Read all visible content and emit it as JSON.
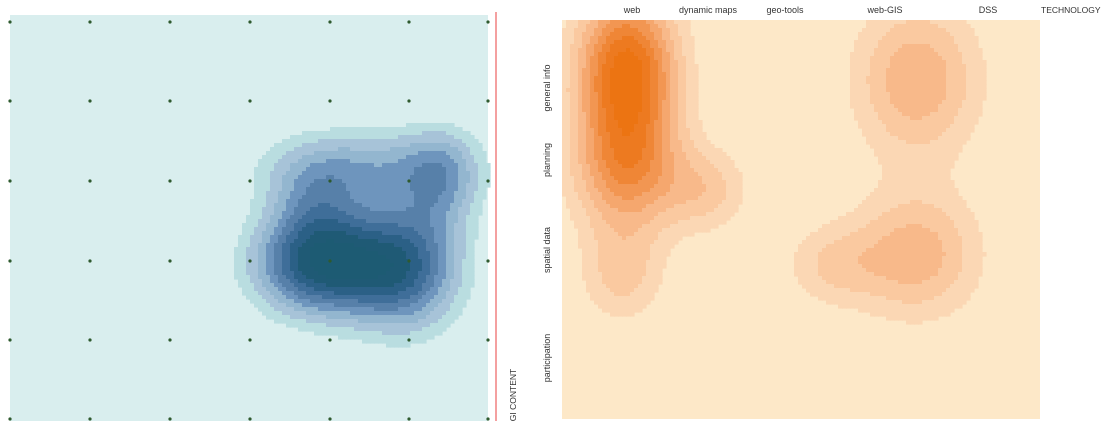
{
  "chart_data": [
    {
      "type": "heatmap",
      "title": "",
      "xlabel": "",
      "ylabel": "",
      "categories_x": [],
      "categories_y": [],
      "grid": true,
      "background_color": "#d9eeee",
      "ramp": [
        "#b9dde0",
        "#a7c3d8",
        "#93b6cf",
        "#6e95bd",
        "#5780a9",
        "#3f6e99",
        "#2b6086",
        "#1f5a75"
      ],
      "peak_color": "#1d5b73",
      "dot_color": "#2e5a2e",
      "divider_color": "#e84040",
      "hotspots": [
        {
          "x": 3.9,
          "y": 3.05,
          "sx": 0.6,
          "sy": 0.45,
          "w": 1.0
        },
        {
          "x": 4.95,
          "y": 3.1,
          "sx": 0.5,
          "sy": 0.55,
          "w": 0.75
        },
        {
          "x": 4.4,
          "y": 1.85,
          "sx": 0.9,
          "sy": 0.35,
          "w": 0.42
        },
        {
          "x": 5.4,
          "y": 2.0,
          "sx": 0.35,
          "sy": 0.45,
          "w": 0.38
        },
        {
          "x": 3.8,
          "y": 2.3,
          "sx": 0.4,
          "sy": 0.4,
          "w": 0.3
        }
      ]
    },
    {
      "type": "heatmap",
      "title": "",
      "xlabel": "TECHNOLOGY",
      "ylabel": "GI CONTENT",
      "categories_x": [
        "web",
        "dynamic maps",
        "geo-tools",
        "web-GIS",
        "DSS"
      ],
      "categories_y": [
        "general info",
        "planning",
        "spatial data",
        "participation"
      ],
      "grid": false,
      "background_color": "#fde8c8",
      "ramp": [
        "#fbd7b4",
        "#fac9a0",
        "#f8b98a",
        "#f5a76e",
        "#f29652",
        "#ef8636",
        "#ed7a20"
      ],
      "peak_color": "#ec7412",
      "hotspots": [
        {
          "x": 0.05,
          "y": 0.5,
          "sx": 0.35,
          "sy": 0.55,
          "w": 1.0
        },
        {
          "x": 0.05,
          "y": 1.5,
          "sx": 0.38,
          "sy": 0.45,
          "w": 0.62
        },
        {
          "x": 0.0,
          "y": 2.55,
          "sx": 0.3,
          "sy": 0.35,
          "w": 0.3
        },
        {
          "x": 0.85,
          "y": 1.7,
          "sx": 0.3,
          "sy": 0.3,
          "w": 0.3
        },
        {
          "x": 2.95,
          "y": 0.6,
          "sx": 0.45,
          "sy": 0.55,
          "w": 0.48
        },
        {
          "x": 2.95,
          "y": 2.35,
          "sx": 0.45,
          "sy": 0.45,
          "w": 0.45
        },
        {
          "x": 2.1,
          "y": 2.45,
          "sx": 0.35,
          "sy": 0.3,
          "w": 0.25
        }
      ]
    }
  ]
}
